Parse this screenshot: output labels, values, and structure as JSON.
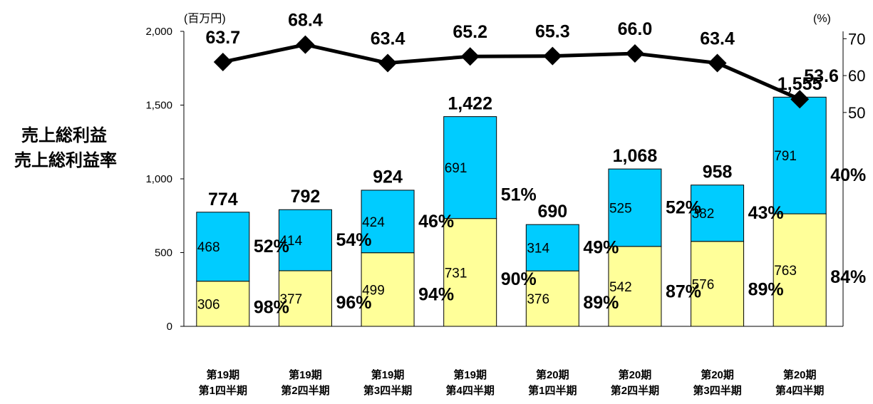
{
  "chart_data": {
    "type": "bar",
    "stacked": true,
    "unit_left": "(百万円)",
    "unit_right": "(%)",
    "side_titles": [
      "売上総利益",
      "売上総利益率"
    ],
    "categories": [
      [
        "第19期",
        "第1四半期"
      ],
      [
        "第19期",
        "第2四半期"
      ],
      [
        "第19期",
        "第3四半期"
      ],
      [
        "第19期",
        "第4四半期"
      ],
      [
        "第20期",
        "第1四半期"
      ],
      [
        "第20期",
        "第2四半期"
      ],
      [
        "第20期",
        "第3四半期"
      ],
      [
        "第20期",
        "第4四半期"
      ]
    ],
    "y_left": {
      "ylim": [
        0,
        2000
      ],
      "ticks": [
        "0",
        "500",
        "1,000",
        "1,500",
        "2,000"
      ],
      "tick_values": [
        0,
        500,
        1000,
        1500,
        2000
      ]
    },
    "y_right": {
      "ticks": [
        "50",
        "60",
        "70"
      ],
      "tick_values": [
        50,
        60,
        70
      ]
    },
    "series": [
      {
        "values": [
          306,
          377,
          499,
          731,
          376,
          542,
          576,
          763
        ],
        "labels": [
          "306",
          "377",
          "499",
          "731",
          "376",
          "542",
          "576",
          "763"
        ],
        "percent_labels": [
          "98%",
          "96%",
          "94%",
          "90%",
          "89%",
          "87%",
          "89%",
          "84%"
        ],
        "color": "#ffff99"
      },
      {
        "values": [
          468,
          414,
          424,
          691,
          314,
          525,
          382,
          791
        ],
        "labels": [
          "468",
          "414",
          "424",
          "691",
          "314",
          "525",
          "382",
          "791"
        ],
        "percent_labels": [
          "52%",
          "54%",
          "46%",
          "51%",
          "49%",
          "52%",
          "43%",
          "40%"
        ],
        "color": "#00ccff"
      }
    ],
    "totals": [
      774,
      792,
      924,
      1422,
      690,
      1068,
      958,
      1555
    ],
    "total_labels": [
      "774",
      "792",
      "924",
      "1,422",
      "690",
      "1,068",
      "958",
      "1,555"
    ],
    "line": {
      "axis": "right",
      "values": [
        63.7,
        68.4,
        63.4,
        65.2,
        65.3,
        66.0,
        63.4,
        53.6
      ],
      "labels": [
        "63.7",
        "68.4",
        "63.4",
        "65.2",
        "65.3",
        "66.0",
        "63.4",
        "53.6"
      ],
      "color": "#000000",
      "marker": "diamond"
    }
  }
}
